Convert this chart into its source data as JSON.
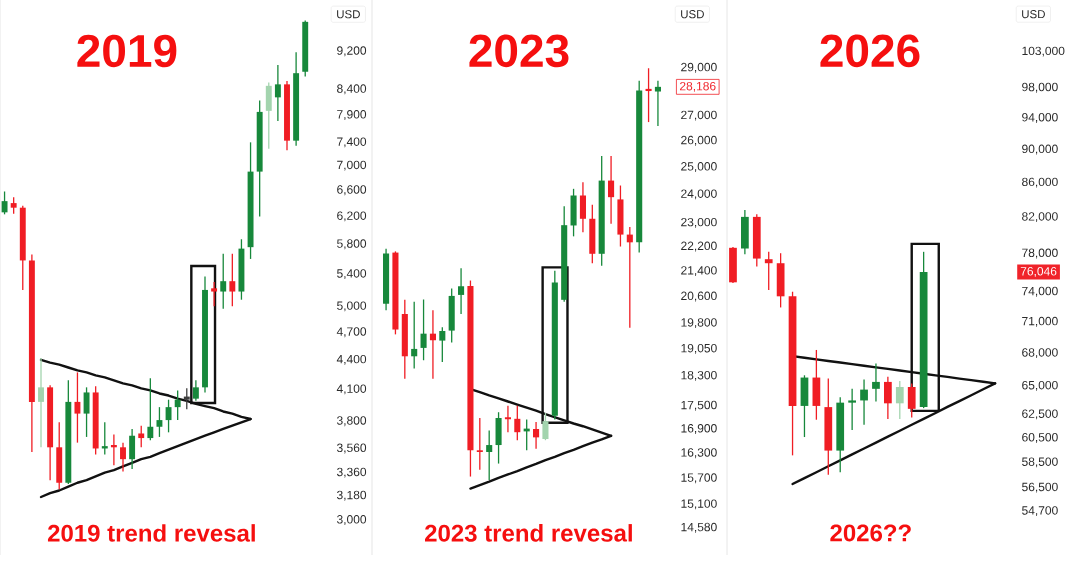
{
  "chart_data": [
    {
      "type": "candlestick",
      "title": "2019",
      "ylabel": "USD",
      "annotations": [
        "2019 trend revesal"
      ],
      "log": true,
      "tick_labels": "y",
      "ylim": [
        2760,
        10400
      ],
      "yticks": [
        {
          "value": 3000,
          "label": "3,000"
        },
        {
          "value": 3180,
          "label": "3,180"
        },
        {
          "value": 3360,
          "label": "3,360"
        },
        {
          "value": 3560,
          "label": "3,560"
        },
        {
          "value": 3800,
          "label": "3,800"
        },
        {
          "value": 4100,
          "label": "4,100"
        },
        {
          "value": 4400,
          "label": "4,400"
        },
        {
          "value": 4700,
          "label": "4,700"
        },
        {
          "value": 5000,
          "label": "5,000"
        },
        {
          "value": 5400,
          "label": "5,400"
        },
        {
          "value": 5800,
          "label": "5,800"
        },
        {
          "value": 6200,
          "label": "6,200"
        },
        {
          "value": 6600,
          "label": "6,600"
        },
        {
          "value": 7000,
          "label": "7,000"
        },
        {
          "value": 7400,
          "label": "7,400"
        },
        {
          "value": 7900,
          "label": "7,900"
        },
        {
          "value": 8400,
          "label": "8,400"
        },
        {
          "value": 9200,
          "label": "9,200"
        }
      ],
      "categories": [
        null,
        null,
        null,
        null,
        null,
        null,
        null,
        null,
        null,
        null,
        null,
        null,
        null,
        null,
        null,
        null,
        null,
        null,
        null,
        null,
        null,
        null,
        null,
        null,
        null,
        null,
        null,
        null,
        null,
        null,
        null,
        null,
        null,
        null,
        null,
        null
      ],
      "ohlc": [
        [
          6260,
          6580,
          6230,
          6430
        ],
        [
          6400,
          6490,
          6240,
          6330
        ],
        [
          6330,
          6360,
          5200,
          5580
        ],
        [
          5580,
          5660,
          3530,
          3980
        ],
        [
          3980,
          4420,
          3570,
          4120
        ],
        [
          4120,
          4140,
          3300,
          3570
        ],
        [
          3570,
          3790,
          3230,
          3280
        ],
        [
          3280,
          4190,
          3270,
          3980
        ],
        [
          3980,
          4270,
          3610,
          3870
        ],
        [
          3870,
          4120,
          3660,
          4070
        ],
        [
          4070,
          4130,
          3510,
          3560
        ],
        [
          3560,
          3790,
          3510,
          3580
        ],
        [
          3590,
          3680,
          3420,
          3570
        ],
        [
          3570,
          3610,
          3370,
          3470
        ],
        [
          3470,
          3730,
          3390,
          3670
        ],
        [
          3690,
          3760,
          3570,
          3650
        ],
        [
          3650,
          4210,
          3630,
          3750
        ],
        [
          3750,
          3930,
          3660,
          3810
        ],
        [
          3810,
          4000,
          3700,
          3930
        ],
        [
          3930,
          4090,
          3810,
          4000
        ],
        [
          4000,
          4110,
          3910,
          4030
        ],
        [
          4010,
          4190,
          3990,
          4120
        ],
        [
          4120,
          5370,
          4070,
          5200
        ],
        [
          5220,
          5300,
          5000,
          5180
        ],
        [
          5180,
          5670,
          4970,
          5310
        ],
        [
          5310,
          5670,
          5000,
          5180
        ],
        [
          5180,
          5870,
          5080,
          5740
        ],
        [
          5760,
          7400,
          5600,
          6900
        ],
        [
          6900,
          8180,
          6200,
          7960
        ],
        [
          7980,
          8540,
          7290,
          8470
        ],
        [
          8240,
          8900,
          7790,
          8500
        ],
        [
          8500,
          8570,
          7260,
          7430
        ],
        [
          7430,
          9180,
          7340,
          8730
        ],
        [
          8760,
          9900,
          8660,
          9870
        ],
        null,
        null
      ],
      "colors": [
        "#17883b",
        "#f01d24",
        "#f01d24",
        "#f01d24",
        "#a3d4ae",
        "#f01d24",
        "#f01d24",
        "#17883b",
        "#f01d24",
        "#17883b",
        "#f01d24",
        "#17883b",
        "#f01d24",
        "#f01d24",
        "#17883b",
        "#f01d24",
        "#17883b",
        "#17883b",
        "#17883b",
        "#17883b",
        "#3d3d3d",
        "#17883b",
        "#17883b",
        "#f01d24",
        "#17883b",
        "#f01d24",
        "#17883b",
        "#17883b",
        "#17883b",
        "#a3d4ae",
        "#17883b",
        "#f01d24",
        "#17883b",
        "#17883b",
        null,
        null
      ],
      "series": [
        {
          "type": "line",
          "color": "#111111",
          "values": [
            null,
            null,
            null,
            null,
            4400,
            4370,
            4350,
            4320,
            4290,
            4270,
            4240,
            4220,
            4190,
            4160,
            4140,
            4110,
            4090,
            4060,
            4040,
            4010,
            3990,
            3960,
            3940,
            3920,
            3890,
            3870,
            3840,
            3820,
            null,
            null,
            null,
            null,
            null,
            null,
            null,
            null
          ]
        },
        {
          "type": "line",
          "color": "#111111",
          "values": [
            null,
            null,
            null,
            null,
            3170,
            3200,
            3220,
            3250,
            3280,
            3300,
            3330,
            3360,
            3380,
            3410,
            3440,
            3470,
            3490,
            3520,
            3550,
            3580,
            3610,
            3640,
            3670,
            3700,
            3730,
            3760,
            3790,
            3820,
            null,
            null,
            null,
            null,
            null,
            null,
            null,
            null
          ]
        }
      ]
    },
    {
      "type": "candlestick",
      "title": "2023",
      "ylabel": "USD",
      "annotations": [
        "2023 trend revesal",
        "28,186"
      ],
      "log": true,
      "tick_labels": "y",
      "ylim": [
        14000,
        32100
      ],
      "yticks": [
        {
          "value": 14580,
          "label": "14,580"
        },
        {
          "value": 15100,
          "label": "15,100"
        },
        {
          "value": 15700,
          "label": "15,700"
        },
        {
          "value": 16300,
          "label": "16,300"
        },
        {
          "value": 16900,
          "label": "16,900"
        },
        {
          "value": 17500,
          "label": "17,500"
        },
        {
          "value": 18300,
          "label": "18,300"
        },
        {
          "value": 19050,
          "label": "19,050"
        },
        {
          "value": 19800,
          "label": "19,800"
        },
        {
          "value": 20600,
          "label": "20,600"
        },
        {
          "value": 21400,
          "label": "21,400"
        },
        {
          "value": 22200,
          "label": "22,200"
        },
        {
          "value": 23000,
          "label": "23,000"
        },
        {
          "value": 24000,
          "label": "24,000"
        },
        {
          "value": 25000,
          "label": "25,000"
        },
        {
          "value": 26000,
          "label": "26,000"
        },
        {
          "value": 27000,
          "label": "27,000"
        },
        {
          "value": 29000,
          "label": "29,000"
        }
      ],
      "categories": [
        null,
        null,
        null,
        null,
        null,
        null,
        null,
        null,
        null,
        null,
        null,
        null,
        null,
        null,
        null,
        null,
        null,
        null,
        null,
        null,
        null,
        null,
        null,
        null,
        null,
        null,
        null,
        null,
        null,
        null,
        null,
        null
      ],
      "ohlc": [
        null,
        [
          20380,
          22130,
          20180,
          21970
        ],
        [
          22000,
          22040,
          19470,
          19610
        ],
        [
          20070,
          20500,
          18220,
          18840
        ],
        [
          18840,
          20440,
          18500,
          19050
        ],
        [
          19080,
          20510,
          18730,
          19490
        ],
        [
          19490,
          20180,
          18220,
          19300
        ],
        [
          19290,
          19680,
          18680,
          19570
        ],
        [
          19580,
          20850,
          19240,
          20620
        ],
        [
          20650,
          21490,
          20070,
          20920
        ],
        [
          20930,
          21100,
          15740,
          16370
        ],
        [
          16370,
          17180,
          15900,
          16330
        ],
        [
          16330,
          16860,
          15660,
          16500
        ],
        [
          16500,
          17330,
          16050,
          17180
        ],
        [
          17200,
          17500,
          16820,
          17150
        ],
        [
          17160,
          17500,
          16620,
          16820
        ],
        [
          16840,
          17140,
          16370,
          16910
        ],
        [
          16900,
          17080,
          16410,
          16690
        ],
        [
          16650,
          17310,
          16620,
          17100
        ],
        [
          17240,
          21410,
          17140,
          21040
        ],
        [
          20500,
          23580,
          20440,
          22920
        ],
        [
          22910,
          24200,
          22540,
          23960
        ],
        [
          23960,
          24440,
          22680,
          23140
        ],
        [
          23140,
          23630,
          21650,
          21960
        ],
        [
          21960,
          25420,
          21570,
          24500
        ],
        [
          24500,
          25420,
          22970,
          23900
        ],
        [
          23820,
          24320,
          22200,
          22600
        ],
        [
          22600,
          22860,
          19660,
          22340
        ],
        [
          22340,
          28440,
          22000,
          28030
        ],
        [
          28100,
          28980,
          26740,
          28010
        ],
        [
          27990,
          28440,
          26580,
          28186
        ],
        null
      ],
      "colors": [
        null,
        "#17883b",
        "#f01d24",
        "#f01d24",
        "#17883b",
        "#17883b",
        "#f01d24",
        "#17883b",
        "#17883b",
        "#17883b",
        "#f01d24",
        "#f01d24",
        "#17883b",
        "#17883b",
        "#f01d24",
        "#f01d24",
        "#17883b",
        "#f01d24",
        "#a3d4ae",
        "#17883b",
        "#17883b",
        "#17883b",
        "#f01d24",
        "#f01d24",
        "#17883b",
        "#f01d24",
        "#f01d24",
        "#f01d24",
        "#17883b",
        "#f01d24",
        "#17883b",
        null
      ],
      "series": [
        {
          "type": "line",
          "color": "#111111",
          "values": [
            null,
            null,
            null,
            null,
            null,
            null,
            null,
            null,
            null,
            null,
            17940,
            17860,
            17770,
            17690,
            17610,
            17530,
            17450,
            17370,
            17280,
            17200,
            17120,
            17040,
            16970,
            16890,
            16810,
            16730,
            null,
            null,
            null,
            null,
            null,
            null
          ]
        },
        {
          "type": "line",
          "color": "#111111",
          "values": [
            null,
            null,
            null,
            null,
            null,
            null,
            null,
            null,
            null,
            null,
            15460,
            15540,
            15620,
            15710,
            15790,
            15870,
            15960,
            16040,
            16130,
            16210,
            16300,
            16380,
            16470,
            16560,
            16640,
            16730,
            null,
            null,
            null,
            null,
            null,
            null
          ]
        }
      ]
    },
    {
      "type": "candlestick",
      "title": "2026",
      "ylabel": "USD",
      "annotations": [
        "2026??",
        "76,046"
      ],
      "log": true,
      "tick_labels": "y",
      "ylim": [
        51500,
        110600
      ],
      "yticks": [
        {
          "value": 54700,
          "label": "54,700"
        },
        {
          "value": 56500,
          "label": "56,500"
        },
        {
          "value": 58500,
          "label": "58,500"
        },
        {
          "value": 60500,
          "label": "60,500"
        },
        {
          "value": 62500,
          "label": "62,500"
        },
        {
          "value": 65000,
          "label": "65,000"
        },
        {
          "value": 68000,
          "label": "68,000"
        },
        {
          "value": 71000,
          "label": "71,000"
        },
        {
          "value": 74000,
          "label": "74,000"
        },
        {
          "value": 78000,
          "label": "78,000"
        },
        {
          "value": 82000,
          "label": "82,000"
        },
        {
          "value": 86000,
          "label": "86,000"
        },
        {
          "value": 90000,
          "label": "90,000"
        },
        {
          "value": 94000,
          "label": "94,000"
        },
        {
          "value": 98000,
          "label": "98,000"
        },
        {
          "value": 103000,
          "label": "103,000"
        }
      ],
      "categories": [
        null,
        null,
        null,
        null,
        null,
        null,
        null,
        null,
        null,
        null,
        null,
        null,
        null,
        null,
        null,
        null,
        null,
        null,
        null,
        null,
        null,
        null,
        null,
        null
      ],
      "ohlc": [
        [
          78620,
          78700,
          74900,
          74970
        ],
        [
          78550,
          82820,
          77940,
          82030
        ],
        [
          82030,
          82320,
          76610,
          77460
        ],
        [
          77400,
          78190,
          74180,
          76970
        ],
        [
          76970,
          78040,
          72420,
          73530
        ],
        [
          73530,
          74000,
          59070,
          63230
        ],
        [
          63230,
          65960,
          60580,
          65750
        ],
        [
          65750,
          68300,
          62040,
          63230
        ],
        [
          63130,
          65660,
          57520,
          59460
        ],
        [
          59460,
          64000,
          57710,
          63520
        ],
        [
          63520,
          64740,
          61160,
          63710
        ],
        [
          63710,
          65570,
          61620,
          64670
        ],
        [
          64740,
          67030,
          63610,
          65360
        ],
        [
          65360,
          65820,
          62100,
          63460
        ],
        [
          63460,
          65450,
          62100,
          64900
        ],
        [
          64900,
          65210,
          62230,
          62980
        ],
        [
          63130,
          78190,
          63040,
          76046
        ],
        null,
        null,
        null,
        null,
        null,
        null,
        null
      ],
      "colors": [
        "#f01d24",
        "#17883b",
        "#f01d24",
        "#f01d24",
        "#f01d24",
        "#f01d24",
        "#17883b",
        "#f01d24",
        "#f01d24",
        "#17883b",
        "#17883b",
        "#17883b",
        "#17883b",
        "#f01d24",
        "#a3d4ae",
        "#f01d24",
        "#17883b",
        null,
        null,
        null,
        null,
        null,
        null,
        null
      ],
      "series": [
        {
          "type": "line",
          "color": "#111111",
          "values": [
            null,
            null,
            null,
            null,
            null,
            67720,
            67570,
            67420,
            67270,
            67130,
            66980,
            66830,
            66680,
            66540,
            66390,
            66240,
            66100,
            65950,
            65810,
            65660,
            65520,
            65370,
            65230,
            null
          ]
        },
        {
          "type": "line",
          "color": "#111111",
          "values": [
            null,
            null,
            null,
            null,
            null,
            56780,
            57250,
            57710,
            58190,
            58660,
            59150,
            59630,
            60120,
            60610,
            61110,
            61610,
            62110,
            62620,
            63140,
            63650,
            64170,
            64700,
            65230,
            null
          ]
        }
      ]
    }
  ]
}
